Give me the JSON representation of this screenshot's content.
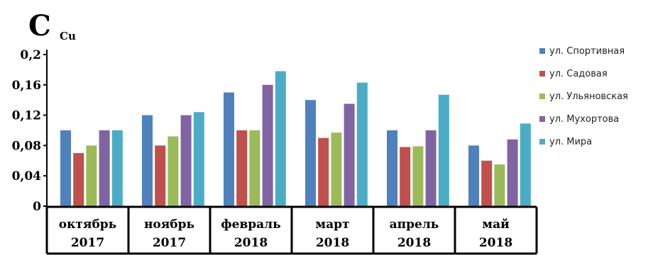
{
  "chart_data": {
    "type": "bar",
    "ylabel_main": "C",
    "ylabel_sub": "Cu",
    "title": "",
    "categories": [
      [
        "октябрь",
        "2017"
      ],
      [
        "ноябрь",
        "2017"
      ],
      [
        "февраль",
        "2018"
      ],
      [
        "март",
        "2018"
      ],
      [
        "апрель",
        "2018"
      ],
      [
        "май",
        "2018"
      ]
    ],
    "series": [
      {
        "name": "ул. Спортивная",
        "color": "#4f81bd",
        "values": [
          0.1,
          0.12,
          0.15,
          0.14,
          0.1,
          0.08
        ]
      },
      {
        "name": "ул. Садовая",
        "color": "#c0504d",
        "values": [
          0.07,
          0.08,
          0.1,
          0.09,
          0.078,
          0.06
        ]
      },
      {
        "name": "ул. Ульяновская",
        "color": "#9bbb59",
        "values": [
          0.08,
          0.092,
          0.1,
          0.097,
          0.079,
          0.055
        ]
      },
      {
        "name": "ул. Мухортова",
        "color": "#8064a2",
        "values": [
          0.1,
          0.12,
          0.16,
          0.135,
          0.1,
          0.088
        ]
      },
      {
        "name": "ул. Мира",
        "color": "#4bacc6",
        "values": [
          0.1,
          0.124,
          0.178,
          0.163,
          0.147,
          0.109
        ]
      }
    ],
    "yticks": [
      "0",
      "0,04",
      "0,08",
      "0,12",
      "0,16",
      "0,2"
    ],
    "ylim": [
      0,
      0.2
    ],
    "grid": false,
    "legend_position": "right"
  }
}
